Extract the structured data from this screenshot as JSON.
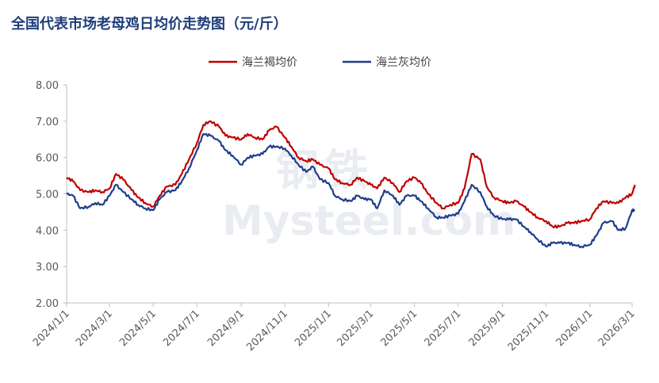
{
  "title": "全国代表市场老母鸡日均价走势图（元/斤）",
  "watermark": {
    "cn": "钢铁",
    "en": "Mysteel.com"
  },
  "colors": {
    "title": "#1f3d7a",
    "series_red": "#c00000",
    "series_blue": "#1f3d8c",
    "axis": "#bfbfbf"
  },
  "chart_data": {
    "type": "line",
    "title": "全国代表市场老母鸡日均价走势图（元/斤）",
    "xlabel": "",
    "ylabel": "",
    "ylim": [
      2,
      8
    ],
    "yticks": [
      "2.00",
      "3.00",
      "4.00",
      "5.00",
      "6.00",
      "7.00",
      "8.00"
    ],
    "xticks": [
      "2024/1/1",
      "2024/3/1",
      "2024/5/1",
      "2024/7/1",
      "2024/9/1",
      "2024/11/1",
      "2025/1/1",
      "2025/3/1",
      "2025/5/1",
      "2025/7/1",
      "2025/9/1",
      "2025/11/1",
      "2026/1/1",
      "2026/3/1"
    ],
    "legend": "top-center",
    "grid": false,
    "series": [
      {
        "name": "海兰褐均价",
        "color": "#c00000",
        "x": [
          "2024/1/1",
          "2024/1/10",
          "2024/1/20",
          "2024/2/1",
          "2024/2/10",
          "2024/2/20",
          "2024/3/1",
          "2024/3/10",
          "2024/3/20",
          "2024/4/1",
          "2024/4/10",
          "2024/4/20",
          "2024/5/1",
          "2024/5/10",
          "2024/5/20",
          "2024/6/1",
          "2024/6/10",
          "2024/6/20",
          "2024/7/1",
          "2024/7/10",
          "2024/7/20",
          "2024/8/1",
          "2024/8/10",
          "2024/8/20",
          "2024/9/1",
          "2024/9/10",
          "2024/9/20",
          "2024/10/1",
          "2024/10/10",
          "2024/10/20",
          "2024/11/1",
          "2024/11/10",
          "2024/11/20",
          "2024/12/1",
          "2024/12/10",
          "2024/12/20",
          "2025/1/1",
          "2025/1/10",
          "2025/1/20",
          "2025/2/1",
          "2025/2/10",
          "2025/2/20",
          "2025/3/1",
          "2025/3/10",
          "2025/3/20",
          "2025/4/1",
          "2025/4/10",
          "2025/4/20",
          "2025/5/1",
          "2025/5/10",
          "2025/5/20",
          "2025/6/1",
          "2025/6/10",
          "2025/6/20",
          "2025/7/1",
          "2025/7/10",
          "2025/7/20",
          "2025/8/1",
          "2025/8/10",
          "2025/8/20",
          "2025/9/1",
          "2025/9/10",
          "2025/9/20",
          "2025/10/1",
          "2025/10/10",
          "2025/10/20",
          "2025/11/1",
          "2025/11/10",
          "2025/11/20",
          "2025/12/1",
          "2025/12/10",
          "2025/12/20",
          "2026/1/1",
          "2026/1/10",
          "2026/1/20",
          "2026/2/1",
          "2026/2/10",
          "2026/2/20",
          "2026/3/1",
          "2026/3/5"
        ],
        "values": [
          5.45,
          5.35,
          5.1,
          5.05,
          5.1,
          5.05,
          5.15,
          5.55,
          5.4,
          5.1,
          4.9,
          4.75,
          4.65,
          4.95,
          5.2,
          5.25,
          5.55,
          5.95,
          6.4,
          6.9,
          7.0,
          6.85,
          6.6,
          6.55,
          6.5,
          6.65,
          6.55,
          6.5,
          6.75,
          6.85,
          6.55,
          6.3,
          6.0,
          5.9,
          5.95,
          5.8,
          5.7,
          5.4,
          5.3,
          5.25,
          5.45,
          5.35,
          5.25,
          5.15,
          5.45,
          5.3,
          5.05,
          5.35,
          5.45,
          5.3,
          5.0,
          4.75,
          4.6,
          4.7,
          4.75,
          5.15,
          6.1,
          5.95,
          5.2,
          4.9,
          4.8,
          4.75,
          4.8,
          4.65,
          4.5,
          4.35,
          4.25,
          4.1,
          4.1,
          4.2,
          4.2,
          4.25,
          4.3,
          4.6,
          4.8,
          4.75,
          4.75,
          4.9,
          5.0,
          5.25
        ]
      },
      {
        "name": "海兰灰均价",
        "color": "#1f3d8c",
        "x": [
          "2024/1/1",
          "2024/1/10",
          "2024/1/20",
          "2024/2/1",
          "2024/2/10",
          "2024/2/20",
          "2024/3/1",
          "2024/3/10",
          "2024/3/20",
          "2024/4/1",
          "2024/4/10",
          "2024/4/20",
          "2024/5/1",
          "2024/5/10",
          "2024/5/20",
          "2024/6/1",
          "2024/6/10",
          "2024/6/20",
          "2024/7/1",
          "2024/7/10",
          "2024/7/20",
          "2024/8/1",
          "2024/8/10",
          "2024/8/20",
          "2024/9/1",
          "2024/9/10",
          "2024/9/20",
          "2024/10/1",
          "2024/10/10",
          "2024/10/20",
          "2024/11/1",
          "2024/11/10",
          "2024/11/20",
          "2024/12/1",
          "2024/12/10",
          "2024/12/20",
          "2025/1/1",
          "2025/1/10",
          "2025/1/20",
          "2025/2/1",
          "2025/2/10",
          "2025/2/20",
          "2025/3/1",
          "2025/3/10",
          "2025/3/20",
          "2025/4/1",
          "2025/4/10",
          "2025/4/20",
          "2025/5/1",
          "2025/5/10",
          "2025/5/20",
          "2025/6/1",
          "2025/6/10",
          "2025/6/20",
          "2025/7/1",
          "2025/7/10",
          "2025/7/20",
          "2025/8/1",
          "2025/8/10",
          "2025/8/20",
          "2025/9/1",
          "2025/9/10",
          "2025/9/20",
          "2025/10/1",
          "2025/10/10",
          "2025/10/20",
          "2025/11/1",
          "2025/11/10",
          "2025/11/20",
          "2025/12/1",
          "2025/12/10",
          "2025/12/20",
          "2026/1/1",
          "2026/1/10",
          "2026/1/20",
          "2026/2/1",
          "2026/2/10",
          "2026/2/20",
          "2026/3/1",
          "2026/3/5"
        ],
        "values": [
          5.0,
          4.95,
          4.6,
          4.65,
          4.75,
          4.7,
          4.95,
          5.25,
          5.05,
          4.85,
          4.7,
          4.6,
          4.55,
          4.85,
          5.05,
          5.1,
          5.35,
          5.7,
          6.2,
          6.65,
          6.6,
          6.45,
          6.2,
          6.05,
          5.8,
          6.0,
          6.05,
          6.1,
          6.3,
          6.3,
          6.25,
          6.05,
          5.8,
          5.6,
          5.75,
          5.4,
          5.3,
          4.95,
          4.85,
          4.8,
          4.95,
          4.85,
          4.85,
          4.6,
          5.1,
          4.95,
          4.7,
          4.95,
          4.95,
          4.8,
          4.6,
          4.35,
          4.35,
          4.4,
          4.45,
          4.8,
          5.25,
          5.05,
          4.65,
          4.4,
          4.3,
          4.3,
          4.3,
          4.1,
          3.95,
          3.75,
          3.55,
          3.65,
          3.65,
          3.65,
          3.6,
          3.55,
          3.6,
          3.85,
          4.2,
          4.25,
          4.0,
          4.05,
          4.55,
          4.55
        ]
      }
    ]
  }
}
